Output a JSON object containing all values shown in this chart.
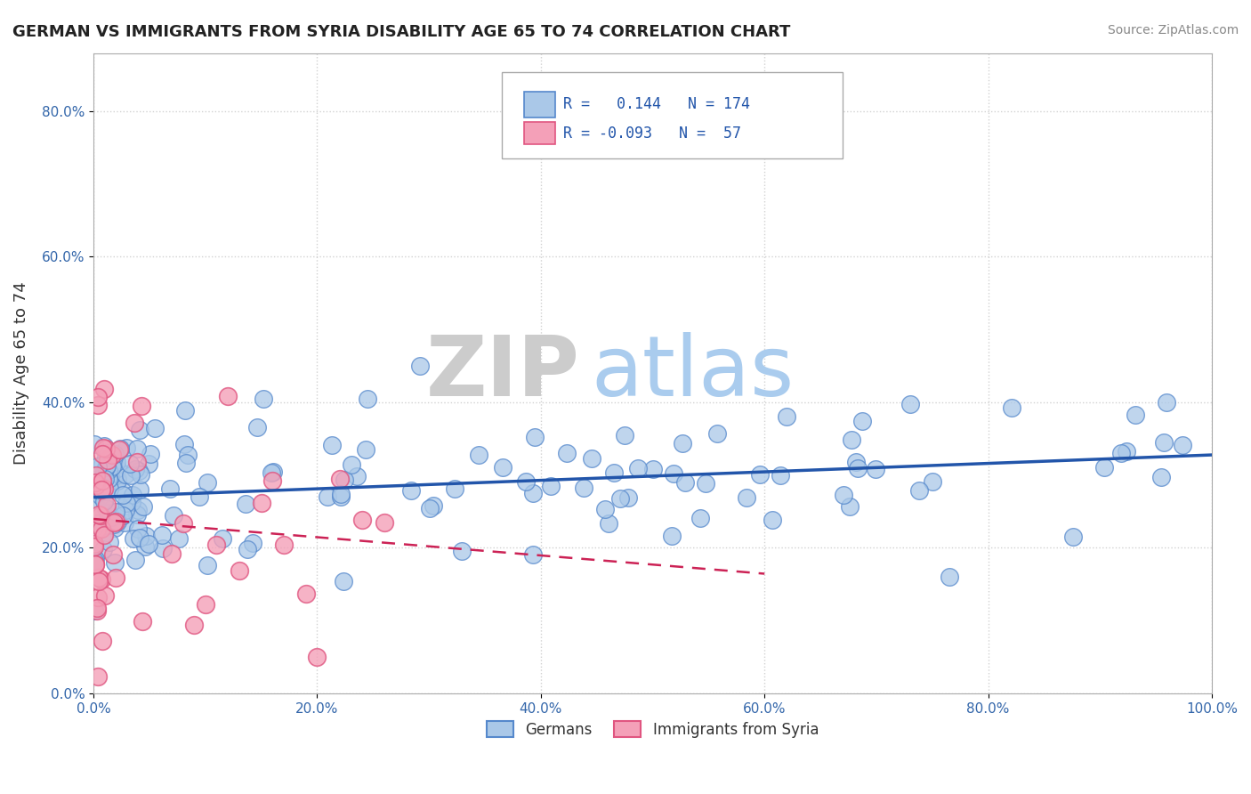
{
  "title": "GERMAN VS IMMIGRANTS FROM SYRIA DISABILITY AGE 65 TO 74 CORRELATION CHART",
  "source": "Source: ZipAtlas.com",
  "ylabel": "Disability Age 65 to 74",
  "xlim": [
    0.0,
    1.0
  ],
  "ylim": [
    0.0,
    0.88
  ],
  "yticks": [
    0.0,
    0.2,
    0.4,
    0.6,
    0.8
  ],
  "ytick_labels": [
    "0.0%",
    "20.0%",
    "40.0%",
    "60.0%",
    "80.0%"
  ],
  "xticks": [
    0.0,
    0.2,
    0.4,
    0.6,
    0.8,
    1.0
  ],
  "xtick_labels": [
    "0.0%",
    "20.0%",
    "40.0%",
    "60.0%",
    "80.0%",
    "100.0%"
  ],
  "german_color": "#aac8e8",
  "german_edge": "#5588cc",
  "syria_color": "#f4a0b8",
  "syria_edge": "#e05580",
  "german_R": 0.144,
  "german_N": 174,
  "syria_R": -0.093,
  "syria_N": 57,
  "trend_german_color": "#2255aa",
  "trend_syria_color": "#cc2255",
  "watermark_zip": "ZIP",
  "watermark_atlas": "atlas",
  "watermark_zip_color": "#cccccc",
  "watermark_atlas_color": "#aaccee",
  "legend_label_german": "Germans",
  "legend_label_syria": "Immigrants from Syria",
  "background_color": "#ffffff",
  "grid_color": "#cccccc"
}
